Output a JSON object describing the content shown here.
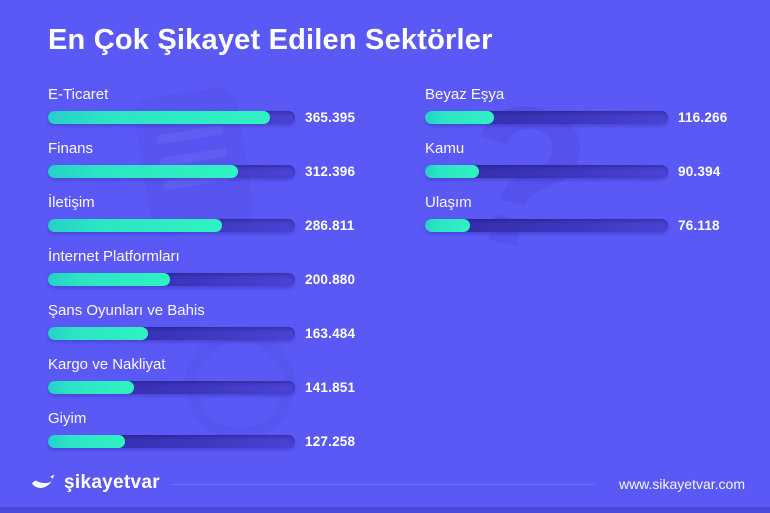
{
  "title": "En Çok Şikayet Edilen Sektörler",
  "footer": {
    "brand": "şikayetvar",
    "url": "www.sikayetvar.com"
  },
  "colors": {
    "background": "#5b59f6",
    "bar_fill_start": "#27cfc9",
    "bar_fill_end": "#2ff3c0",
    "bar_track_start": "#302da4",
    "bar_track_end": "#4a43d4",
    "text": "#ffffff",
    "bottom_strip": "#4c49da"
  },
  "chart_data": {
    "type": "bar",
    "orientation": "horizontal",
    "title": "En Çok Şikayet Edilen Sektörler",
    "scale_max": 406000,
    "legend": "none",
    "grid": false,
    "columns": [
      {
        "items": [
          {
            "label": "E-Ticaret",
            "value": 365395,
            "value_label": "365.395"
          },
          {
            "label": "Finans",
            "value": 312396,
            "value_label": "312.396"
          },
          {
            "label": "İletişim",
            "value": 286811,
            "value_label": "286.811"
          },
          {
            "label": "İnternet Platformları",
            "value": 200880,
            "value_label": "200.880"
          },
          {
            "label": "Şans Oyunları ve Bahis",
            "value": 163484,
            "value_label": "163.484"
          },
          {
            "label": "Kargo ve Nakliyat",
            "value": 141851,
            "value_label": "141.851"
          },
          {
            "label": "Giyim",
            "value": 127258,
            "value_label": "127.258"
          }
        ]
      },
      {
        "items": [
          {
            "label": "Beyaz Eşya",
            "value": 116266,
            "value_label": "116.266"
          },
          {
            "label": "Kamu",
            "value": 90394,
            "value_label": "90.394"
          },
          {
            "label": "Ulaşım",
            "value": 76118,
            "value_label": "76.118"
          }
        ]
      }
    ]
  },
  "watermarks": {
    "question_mark": "?"
  }
}
